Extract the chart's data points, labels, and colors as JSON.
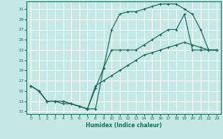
{
  "xlabel": "Humidex (Indice chaleur)",
  "bg_color": "#c5e8e5",
  "grid_color": "#ffffff",
  "line_color": "#1a6b5a",
  "xlim": [
    -0.5,
    23.5
  ],
  "ylim": [
    10.5,
    32.5
  ],
  "xticks": [
    0,
    1,
    2,
    3,
    4,
    5,
    6,
    7,
    8,
    9,
    10,
    11,
    12,
    13,
    14,
    15,
    16,
    17,
    18,
    19,
    20,
    21,
    22,
    23
  ],
  "yticks": [
    11,
    13,
    15,
    17,
    19,
    21,
    23,
    25,
    27,
    29,
    31
  ],
  "line1_x": [
    0,
    1,
    2,
    3,
    4,
    5,
    6,
    7,
    8,
    9,
    10,
    11,
    12,
    13,
    14,
    15,
    16,
    17,
    18,
    19,
    20,
    21,
    22,
    23
  ],
  "line1_y": [
    16,
    15,
    13,
    13,
    13,
    12.5,
    12,
    11.5,
    11.5,
    19.5,
    27,
    30,
    30.5,
    30.5,
    31,
    31.5,
    32,
    32,
    32,
    31,
    30,
    27,
    23,
    23
  ],
  "line2_x": [
    0,
    1,
    2,
    3,
    4,
    5,
    6,
    7,
    8,
    9,
    10,
    11,
    12,
    13,
    14,
    15,
    16,
    17,
    18,
    19,
    20,
    21,
    22,
    23
  ],
  "line2_y": [
    16,
    15,
    13,
    13,
    12.5,
    12.5,
    12,
    11.5,
    15.5,
    19.5,
    23,
    23,
    23,
    23,
    24,
    25,
    26,
    27,
    27,
    30,
    23,
    23,
    23,
    23
  ],
  "line3_x": [
    0,
    1,
    2,
    3,
    4,
    5,
    6,
    7,
    8,
    9,
    10,
    11,
    12,
    13,
    14,
    15,
    16,
    17,
    18,
    19,
    20,
    21,
    22,
    23
  ],
  "line3_y": [
    16,
    15,
    13,
    13,
    13,
    12.5,
    12,
    11.5,
    16,
    17,
    18,
    19,
    20,
    21,
    22,
    22.5,
    23,
    23.5,
    24,
    24.5,
    24,
    23.5,
    23,
    23
  ]
}
